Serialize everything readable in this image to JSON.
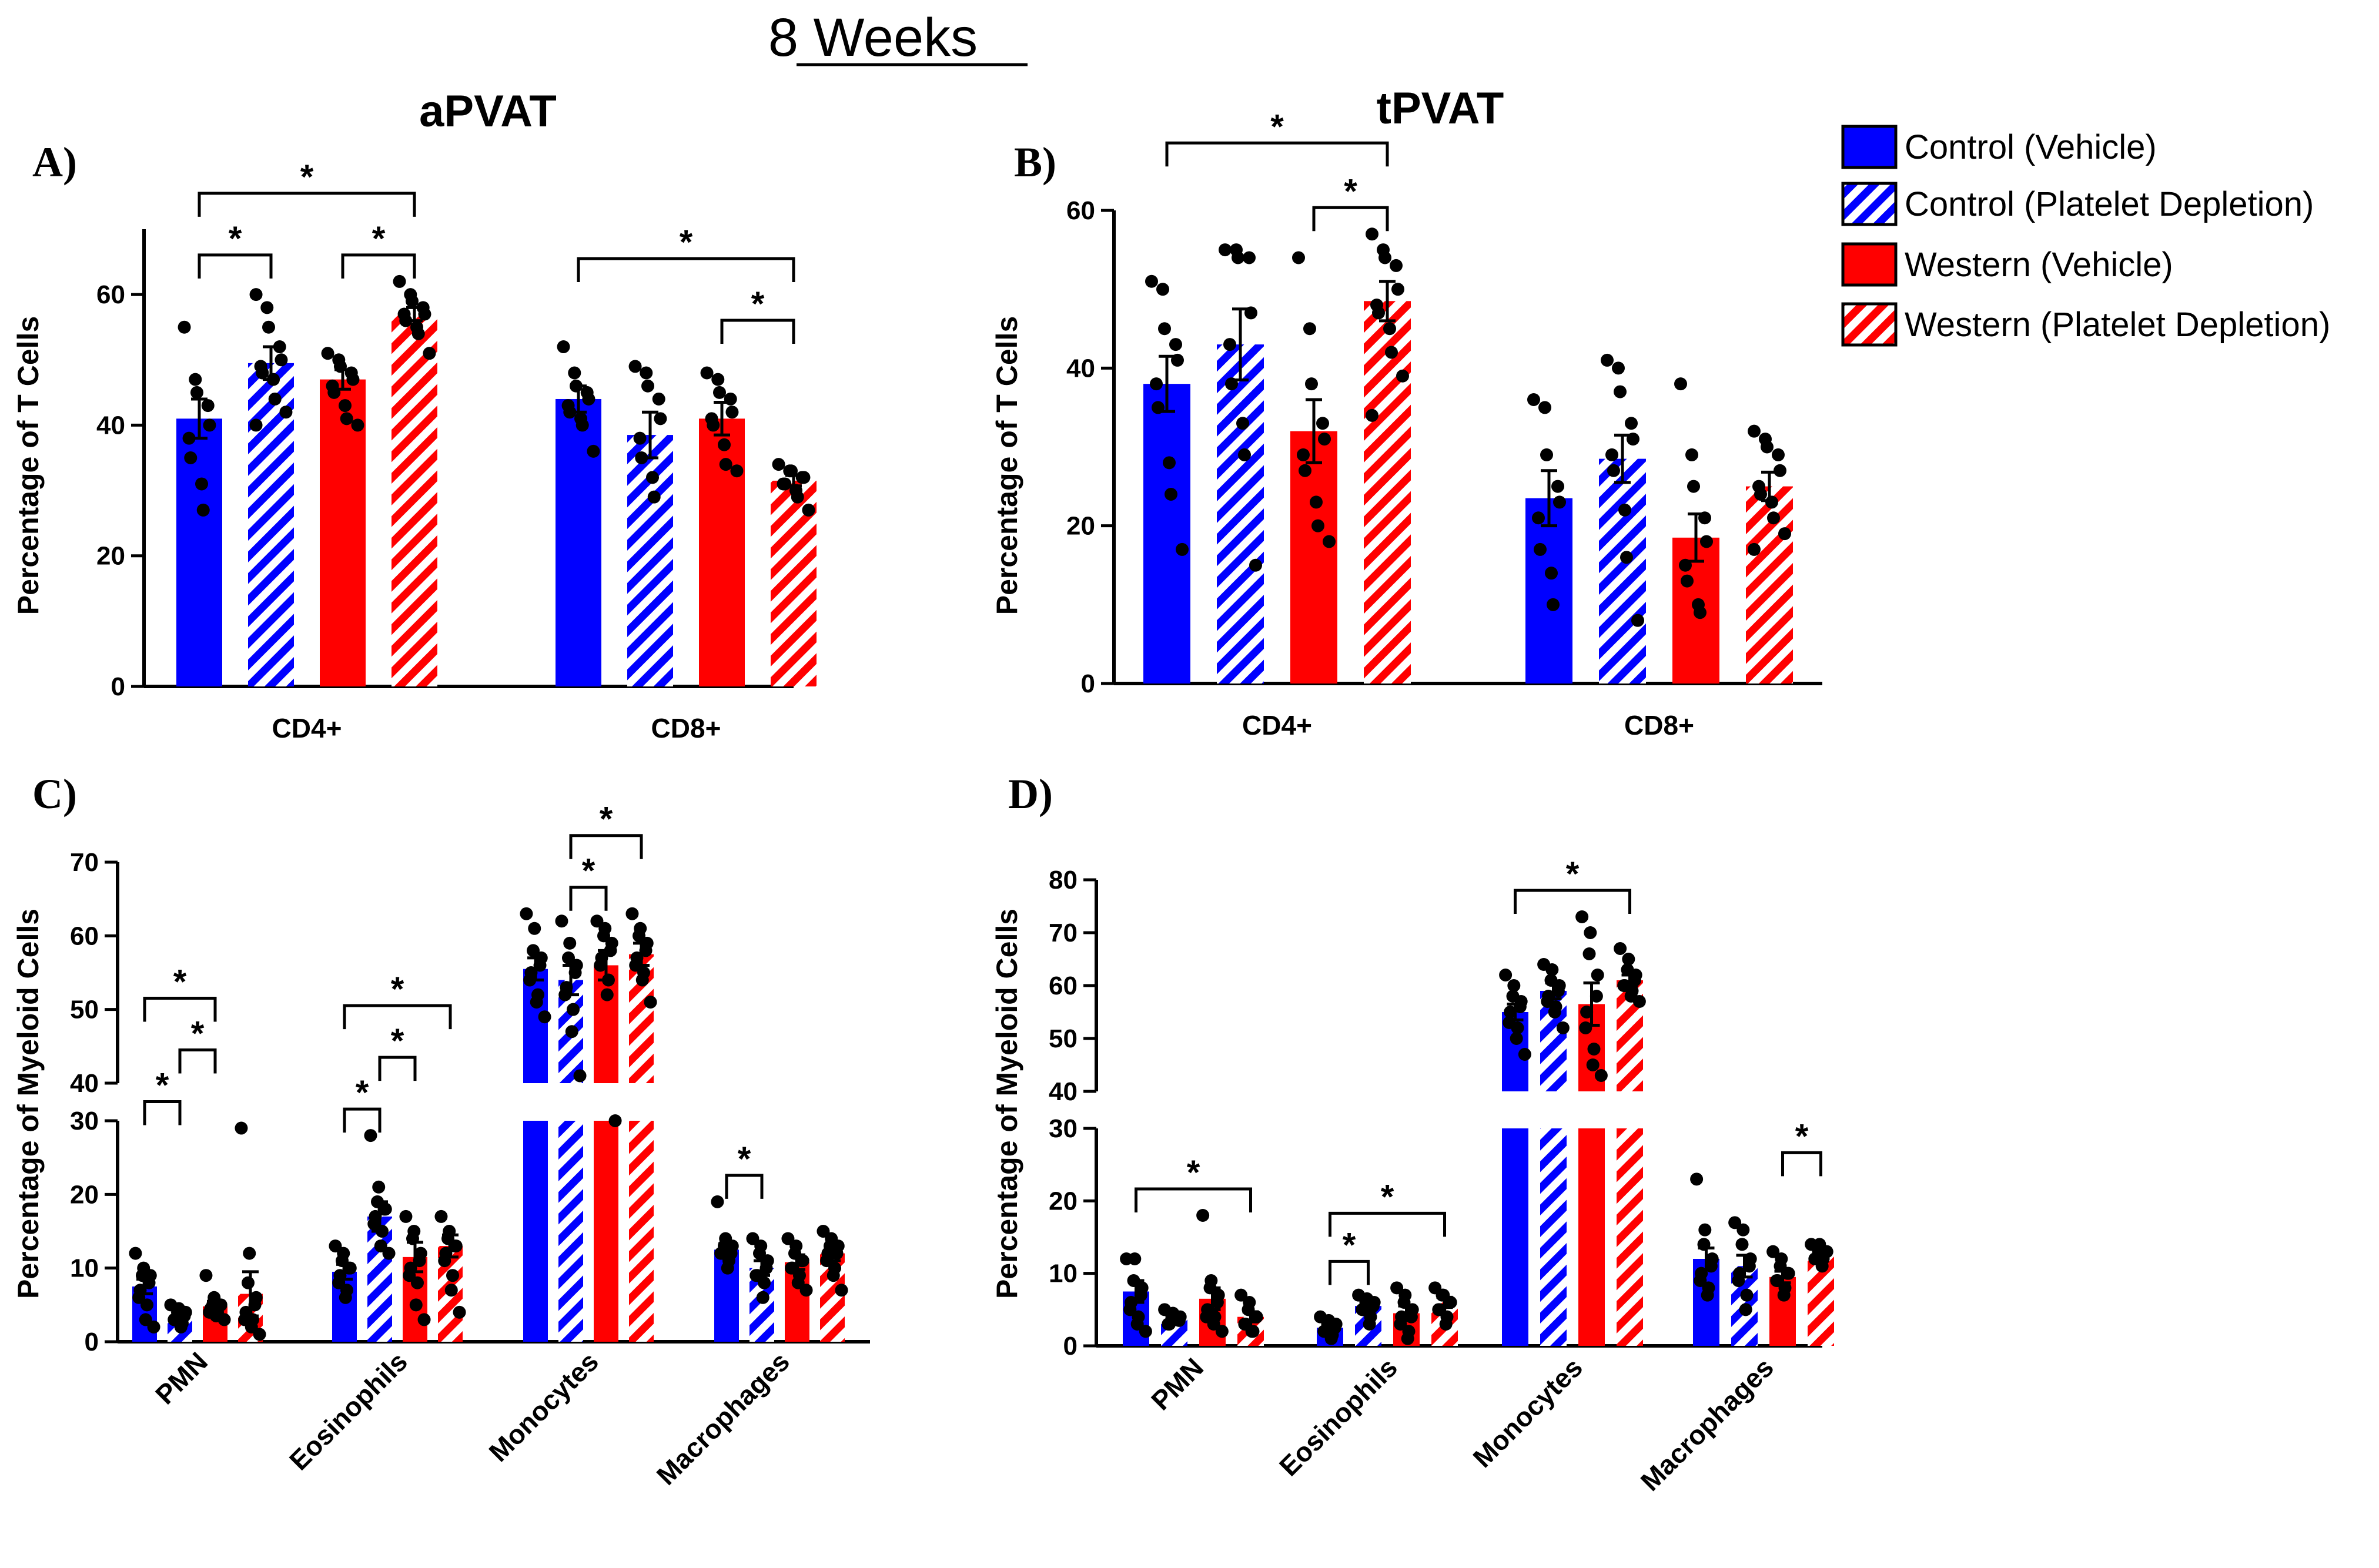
{
  "figure_title": "8 Weeks",
  "colors": {
    "blue": "#0000ff",
    "red": "#ff0000",
    "stripe_background": "#ffffff",
    "dots": "#000000",
    "axes": "#000000"
  },
  "legend": [
    {
      "label": "Control (Vehicle)",
      "color": "#0000ff",
      "pattern": "solid"
    },
    {
      "label": "Control (Platelet Depletion)",
      "color": "#0000ff",
      "pattern": "hatched"
    },
    {
      "label": "Western (Vehicle)",
      "color": "#ff0000",
      "pattern": "solid"
    },
    {
      "label": "Western (Platelet Depletion)",
      "color": "#ff0000",
      "pattern": "hatched"
    }
  ],
  "chart_data": [
    {
      "panel": "A)",
      "type": "bar",
      "title": "aPVAT",
      "ylabel": "Percentage of T Cells",
      "xlabel": "",
      "ylim": [
        0,
        70
      ],
      "yticks": [
        0,
        20,
        40,
        60
      ],
      "categories": [
        "CD4+",
        "CD8+"
      ],
      "series": [
        {
          "name": "Control (Vehicle)",
          "values": [
            41,
            44
          ],
          "sem": [
            3,
            2
          ],
          "points": [
            [
              55,
              47,
              45,
              43,
              40,
              38,
              35,
              31,
              27
            ],
            [
              52,
              48,
              46,
              45,
              44,
              43,
              42,
              41,
              40,
              36
            ]
          ]
        },
        {
          "name": "Control (Platelet Depletion)",
          "values": [
            49.5,
            38.5
          ],
          "sem": [
            2.5,
            3.5
          ],
          "points": [
            [
              60,
              58,
              55,
              52,
              50,
              49,
              48,
              47,
              44,
              42,
              40
            ],
            [
              49,
              48,
              46,
              44,
              41,
              38,
              35,
              32,
              29
            ]
          ]
        },
        {
          "name": "Western (Vehicle)",
          "values": [
            47,
            41
          ],
          "sem": [
            1.5,
            2.5
          ],
          "points": [
            [
              51,
              50,
              49,
              48,
              47,
              46,
              45,
              43,
              41,
              40
            ],
            [
              48,
              47,
              45,
              44,
              42,
              41,
              40,
              37,
              34,
              33
            ]
          ]
        },
        {
          "name": "Western (Platelet Depletion)",
          "values": [
            57,
            31.5
          ],
          "sem": [
            1,
            0.8
          ],
          "points": [
            [
              62,
              60,
              59,
              58,
              57,
              57,
              56,
              55,
              54,
              51
            ],
            [
              34,
              33,
              33,
              32,
              32,
              31,
              31,
              30,
              29,
              27
            ]
          ]
        }
      ],
      "significance": [
        {
          "category": "CD4+",
          "from": 0,
          "to": 1,
          "level": 1,
          "label": "*"
        },
        {
          "category": "CD4+",
          "from": 2,
          "to": 3,
          "level": 1,
          "label": "*"
        },
        {
          "category": "CD4+",
          "from": 0,
          "to": 3,
          "level": 2,
          "label": "*"
        },
        {
          "category": "CD8+",
          "from": 2,
          "to": 3,
          "level": 1,
          "label": "*"
        },
        {
          "category": "CD8+",
          "from": 0,
          "to": 3,
          "level": 2,
          "label": "*"
        }
      ]
    },
    {
      "panel": "B)",
      "type": "bar",
      "title": "tPVAT",
      "ylabel": "Percentage of T Cells",
      "xlabel": "",
      "ylim": [
        0,
        60
      ],
      "yticks": [
        0,
        20,
        40,
        60
      ],
      "categories": [
        "CD4+",
        "CD8+"
      ],
      "series": [
        {
          "name": "Control (Vehicle)",
          "values": [
            38,
            23.5
          ],
          "sem": [
            3.5,
            3.5
          ],
          "points": [
            [
              51,
              50,
              45,
              43,
              41,
              38,
              35,
              28,
              24,
              17
            ],
            [
              36,
              35,
              29,
              25,
              23,
              21,
              17,
              14,
              10
            ]
          ]
        },
        {
          "name": "Control (Platelet Depletion)",
          "values": [
            43,
            28.5
          ],
          "sem": [
            4.5,
            3
          ],
          "points": [
            [
              55,
              55,
              54,
              54,
              47,
              43,
              38,
              33,
              29,
              15
            ],
            [
              41,
              40,
              37,
              33,
              31,
              29,
              27,
              22,
              16,
              8
            ]
          ]
        },
        {
          "name": "Western (Vehicle)",
          "values": [
            32,
            18.5
          ],
          "sem": [
            4,
            3
          ],
          "points": [
            [
              54,
              45,
              38,
              33,
              31,
              29,
              27,
              23,
              20,
              18
            ],
            [
              38,
              29,
              25,
              21,
              18,
              15,
              13,
              10,
              9
            ]
          ]
        },
        {
          "name": "Western (Platelet Depletion)",
          "values": [
            48.5,
            25
          ],
          "sem": [
            2.5,
            1.8
          ],
          "points": [
            [
              57,
              55,
              54,
              53,
              50,
              48,
              47,
              45,
              42,
              39,
              34
            ],
            [
              32,
              31,
              30,
              29,
              27,
              25,
              24,
              23,
              21,
              19,
              17
            ]
          ]
        }
      ],
      "significance": [
        {
          "category": "CD4+",
          "from": 2,
          "to": 3,
          "level": 1,
          "label": "*"
        },
        {
          "category": "CD4+",
          "from": 0,
          "to": 3,
          "level": 2,
          "label": "*"
        }
      ]
    },
    {
      "panel": "C)",
      "type": "bar",
      "title": "",
      "ylabel": "Percentage of Myeloid Cells",
      "xlabel": "",
      "axis_break": {
        "lower": [
          0,
          30
        ],
        "upper": [
          40,
          70
        ]
      },
      "yticks": [
        0,
        10,
        20,
        30,
        40,
        50,
        60,
        70
      ],
      "categories": [
        "PMN",
        "Eosinophils",
        "Monocytes",
        "Macrophages"
      ],
      "series": [
        {
          "name": "Control (Vehicle)",
          "values": [
            7.5,
            9.5,
            55.5,
            12.5
          ],
          "sem": [
            1,
            1,
            1.5,
            0.8
          ],
          "points": [
            [
              12,
              10,
              9,
              9,
              8,
              7,
              6,
              5,
              3,
              2
            ],
            [
              13,
              12,
              11,
              10,
              10,
              9,
              8,
              7,
              6
            ],
            [
              63,
              61,
              58,
              57,
              56,
              55,
              54,
              52,
              51,
              49
            ],
            [
              19,
              14,
              13,
              13,
              12,
              12,
              12,
              11,
              10
            ]
          ]
        },
        {
          "name": "Control (Platelet Depletion)",
          "values": [
            3.5,
            17,
            54,
            10
          ],
          "sem": [
            0.5,
            2,
            2,
            1
          ],
          "points": [
            [
              5,
              4.5,
              4,
              4,
              3.5,
              3,
              3,
              2.5,
              2
            ],
            [
              28,
              21,
              19,
              18,
              18,
              17,
              16,
              15,
              13,
              12
            ],
            [
              62,
              59,
              57,
              56,
              55,
              53,
              52,
              50,
              47,
              41
            ],
            [
              14,
              13,
              12,
              11,
              10,
              9,
              9,
              8,
              6
            ]
          ]
        },
        {
          "name": "Western (Vehicle)",
          "values": [
            4.8,
            11.5,
            56,
            10.8
          ],
          "sem": [
            0.7,
            2,
            2,
            1
          ],
          "points": [
            [
              9,
              6,
              5,
              5,
              5,
              4.5,
              4,
              4,
              3.5,
              3
            ],
            [
              17,
              15,
              14,
              12,
              11,
              10,
              9,
              8,
              5,
              3
            ],
            [
              62,
              61,
              60,
              59,
              58,
              57,
              56,
              54,
              52,
              33
            ],
            [
              14,
              13,
              12,
              11,
              11,
              10,
              10,
              9,
              8,
              7
            ]
          ]
        },
        {
          "name": "Western (Platelet Depletion)",
          "values": [
            6.5,
            13,
            57.5,
            12
          ],
          "sem": [
            3,
            1.5,
            1.5,
            1
          ],
          "points": [
            [
              29,
              12,
              8,
              6,
              5,
              4,
              3,
              3,
              2,
              1
            ],
            [
              17,
              15,
              14,
              13,
              13,
              12,
              11,
              9,
              7,
              4
            ],
            [
              63,
              61,
              60,
              59,
              58,
              57,
              56,
              55,
              54,
              51
            ],
            [
              15,
              14,
              13,
              13,
              12,
              12,
              11,
              10,
              9,
              7
            ]
          ]
        }
      ],
      "significance": [
        {
          "category": "PMN",
          "from": 0,
          "to": 1,
          "level": 1,
          "label": "*"
        },
        {
          "category": "PMN",
          "from": 1,
          "to": 2,
          "level": 2,
          "label": "*"
        },
        {
          "category": "PMN",
          "from": 0,
          "to": 2,
          "level": 3,
          "label": "*"
        },
        {
          "category": "Eosinophils",
          "from": 0,
          "to": 1,
          "level": 1,
          "label": "*"
        },
        {
          "category": "Eosinophils",
          "from": 1,
          "to": 2,
          "level": 2,
          "label": "*"
        },
        {
          "category": "Eosinophils",
          "from": 0,
          "to": 3,
          "level": 3,
          "label": "*"
        },
        {
          "category": "Monocytes",
          "from": 1,
          "to": 2,
          "level": 1,
          "label": "*"
        },
        {
          "category": "Monocytes",
          "from": 1,
          "to": 3,
          "level": 2,
          "label": "*"
        },
        {
          "category": "Macrophages",
          "from": 0,
          "to": 1,
          "level": 1,
          "label": "*"
        }
      ]
    },
    {
      "panel": "D)",
      "type": "bar",
      "title": "",
      "ylabel": "Percentage of Myeloid Cells",
      "xlabel": "",
      "axis_break": {
        "lower": [
          0,
          30
        ],
        "upper": [
          40,
          80
        ]
      },
      "yticks": [
        0,
        10,
        20,
        30,
        40,
        50,
        60,
        70,
        80
      ],
      "categories": [
        "PMN",
        "Eosinophils",
        "Monocytes",
        "Macrophages"
      ],
      "series": [
        {
          "name": "Control (Vehicle)",
          "values": [
            7.5,
            2.5,
            55,
            12
          ],
          "sem": [
            1.5,
            0.5,
            1.5,
            1.5
          ],
          "points": [
            [
              12,
              12,
              9,
              8,
              7,
              6,
              5,
              4,
              3,
              2
            ],
            [
              4,
              3.5,
              3,
              3,
              2.5,
              2,
              2,
              1.5,
              1
            ],
            [
              62,
              60,
              58,
              57,
              56,
              55,
              53,
              52,
              50,
              47
            ],
            [
              23,
              16,
              14,
              12,
              11,
              10,
              9,
              8,
              7
            ]
          ]
        },
        {
          "name": "Control (Platelet Depletion)",
          "values": [
            4,
            5.5,
            59,
            11
          ],
          "sem": [
            0.5,
            0.7,
            1.5,
            1.5
          ],
          "points": [
            [
              5,
              4.5,
              4,
              4,
              3.5,
              3,
              3
            ],
            [
              7,
              6.5,
              6,
              6,
              5.5,
              5,
              5,
              4,
              3
            ],
            [
              64,
              63,
              61,
              60,
              59,
              58,
              57,
              56,
              55,
              52
            ],
            [
              17,
              16,
              14,
              12,
              11,
              10,
              9,
              7,
              5
            ]
          ]
        },
        {
          "name": "Western (Vehicle)",
          "values": [
            6.5,
            4.5,
            56.5,
            9.5
          ],
          "sem": [
            1.5,
            1,
            4,
            0.8
          ],
          "points": [
            [
              18,
              9,
              8,
              7,
              6,
              5,
              4,
              4,
              3,
              2
            ],
            [
              8,
              7,
              6,
              5,
              4,
              4,
              3,
              2,
              1
            ],
            [
              73,
              70,
              66,
              62,
              58,
              55,
              52,
              48,
              45,
              43
            ],
            [
              13,
              12,
              11,
              10,
              10,
              9,
              9,
              8,
              7
            ]
          ]
        },
        {
          "name": "Western (Platelet Depletion)",
          "values": [
            4,
            6,
            61,
            12.5
          ],
          "sem": [
            0.7,
            0.7,
            1,
            0.8
          ],
          "points": [
            [
              7,
              6,
              5,
              4,
              4,
              3,
              3,
              2,
              2
            ],
            [
              8,
              7,
              7,
              6,
              6,
              5,
              5,
              4,
              3
            ],
            [
              67,
              65,
              63,
              62,
              61,
              60,
              60,
              59,
              58,
              57
            ],
            [
              14,
              14,
              13,
              13,
              13,
              12,
              12,
              12,
              11
            ]
          ]
        }
      ],
      "significance": [
        {
          "category": "PMN",
          "from": 0,
          "to": 3,
          "level": 1,
          "label": "*"
        },
        {
          "category": "Eosinophils",
          "from": 0,
          "to": 1,
          "level": 1,
          "label": "*"
        },
        {
          "category": "Eosinophils",
          "from": 0,
          "to": 3,
          "level": 2,
          "label": "*"
        },
        {
          "category": "Monocytes",
          "from": 0,
          "to": 3,
          "level": 1,
          "label": "*"
        },
        {
          "category": "Macrophages",
          "from": 2,
          "to": 3,
          "level": 1,
          "label": "*"
        }
      ]
    }
  ]
}
